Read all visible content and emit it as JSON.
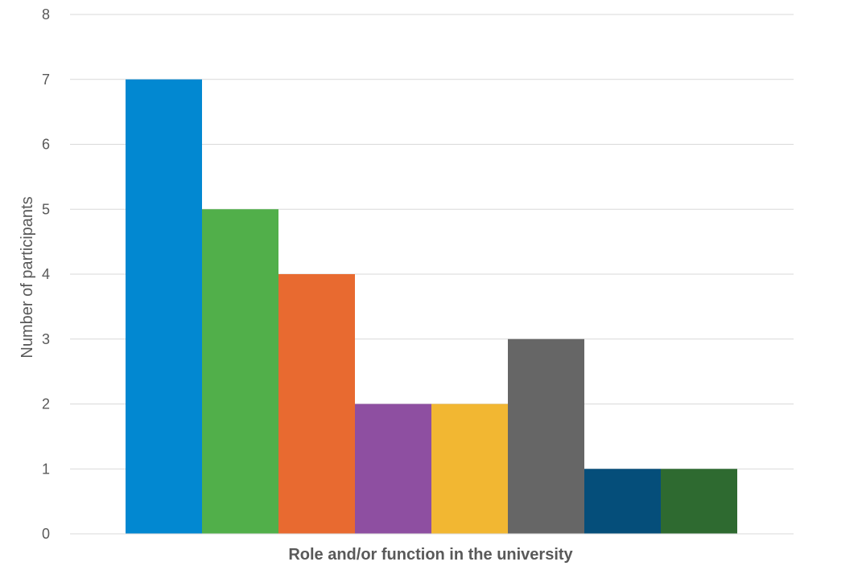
{
  "chart_data": {
    "type": "bar",
    "title": "",
    "xlabel": "Role and/or function in the university",
    "ylabel": "Number of participants",
    "ylim": [
      0,
      8
    ],
    "yticks": [
      0,
      1,
      2,
      3,
      4,
      5,
      6,
      7,
      8
    ],
    "grid": true,
    "legend": "none",
    "series": [
      {
        "values": [
          7,
          5,
          4,
          2,
          2,
          3,
          1,
          1
        ],
        "colors": [
          "#0288D1",
          "#51AF4A",
          "#E86A30",
          "#8E4FA1",
          "#F2B732",
          "#666666",
          "#054E7A",
          "#2E6A30"
        ]
      }
    ]
  }
}
